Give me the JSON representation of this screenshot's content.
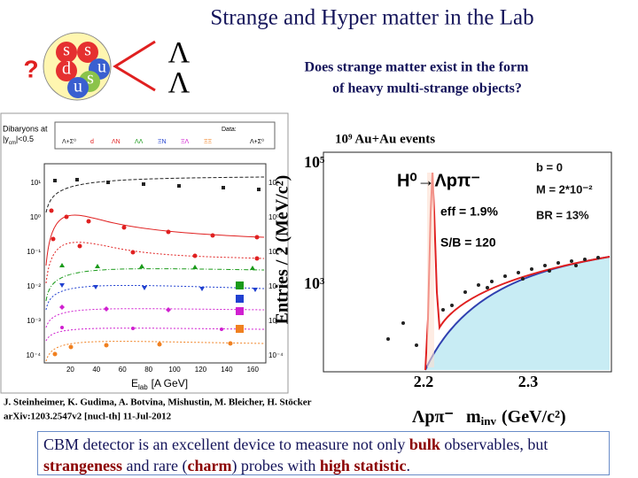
{
  "slide": {
    "title": "Strange and Hyper matter in the Lab",
    "question_mark": "?",
    "quarks": [
      "s",
      "s",
      "d",
      "u",
      "s",
      "u"
    ],
    "lambdas": [
      "Λ",
      "Λ"
    ],
    "question": [
      "Does strange matter exist in the form",
      "of heavy multi-strange objects?"
    ],
    "left_plot": {
      "header": [
        "Dibaryons at",
        "|y",
        "cm",
        "|<0.5"
      ],
      "legend": [
        "Data:",
        "Λ+Σ⁰",
        "d",
        "ΛN",
        "ΛΛ",
        "ΞN",
        "ΞΛ",
        "ΞΞ",
        "Λ+Σ⁰"
      ],
      "yticks": [
        "10¹",
        "10⁰",
        "10⁻¹",
        "10⁻²",
        "10⁻³",
        "10⁻⁴"
      ],
      "xticks": [
        "20",
        "40",
        "60",
        "80",
        "100",
        "120",
        "140",
        "160"
      ],
      "xlabel": {
        "symbol": "E",
        "subscript": "lab",
        "unit": "[A GeV]"
      }
    },
    "right_plot": {
      "events": "10⁹ Au+Au events",
      "ylabel": "Entries / 2 (MeV/c²)",
      "yticks": [
        "10⁵",
        "10³"
      ],
      "xticks": [
        "2.2",
        "2.3"
      ],
      "reaction": "H⁰→Λpπ⁻",
      "params": [
        "b = 0",
        "M = 2*10⁻²",
        "BR = 13%"
      ],
      "eff": "eff = 1.9%",
      "sb": "S/B = 120",
      "xlabel": {
        "prefix": "Λpπ⁻",
        "symbol": "m",
        "subscript": "inv",
        "unit": "(GeV/c²)"
      }
    },
    "citation": [
      "J. Steinheimer, K. Gudima, A. Botvina, Mishustin, M. Bleicher, H. Stöcker",
      "arXiv:1203.2547v2 [nucl-th] 11-Jul-2012"
    ],
    "conclusion": [
      {
        "text": "CBM detector is an excellent device to measure not only ",
        "bold": false
      },
      {
        "text": "bulk",
        "bold": true
      },
      {
        "text": " observables, but ",
        "bold": false
      },
      {
        "text": "strangeness",
        "bold": true
      },
      {
        "text": " and rare (",
        "bold": false
      },
      {
        "text": "charm",
        "bold": true
      },
      {
        "text": ") probes with ",
        "bold": false
      },
      {
        "text": "high statistic",
        "bold": true
      },
      {
        "text": ".",
        "bold": false
      }
    ]
  }
}
